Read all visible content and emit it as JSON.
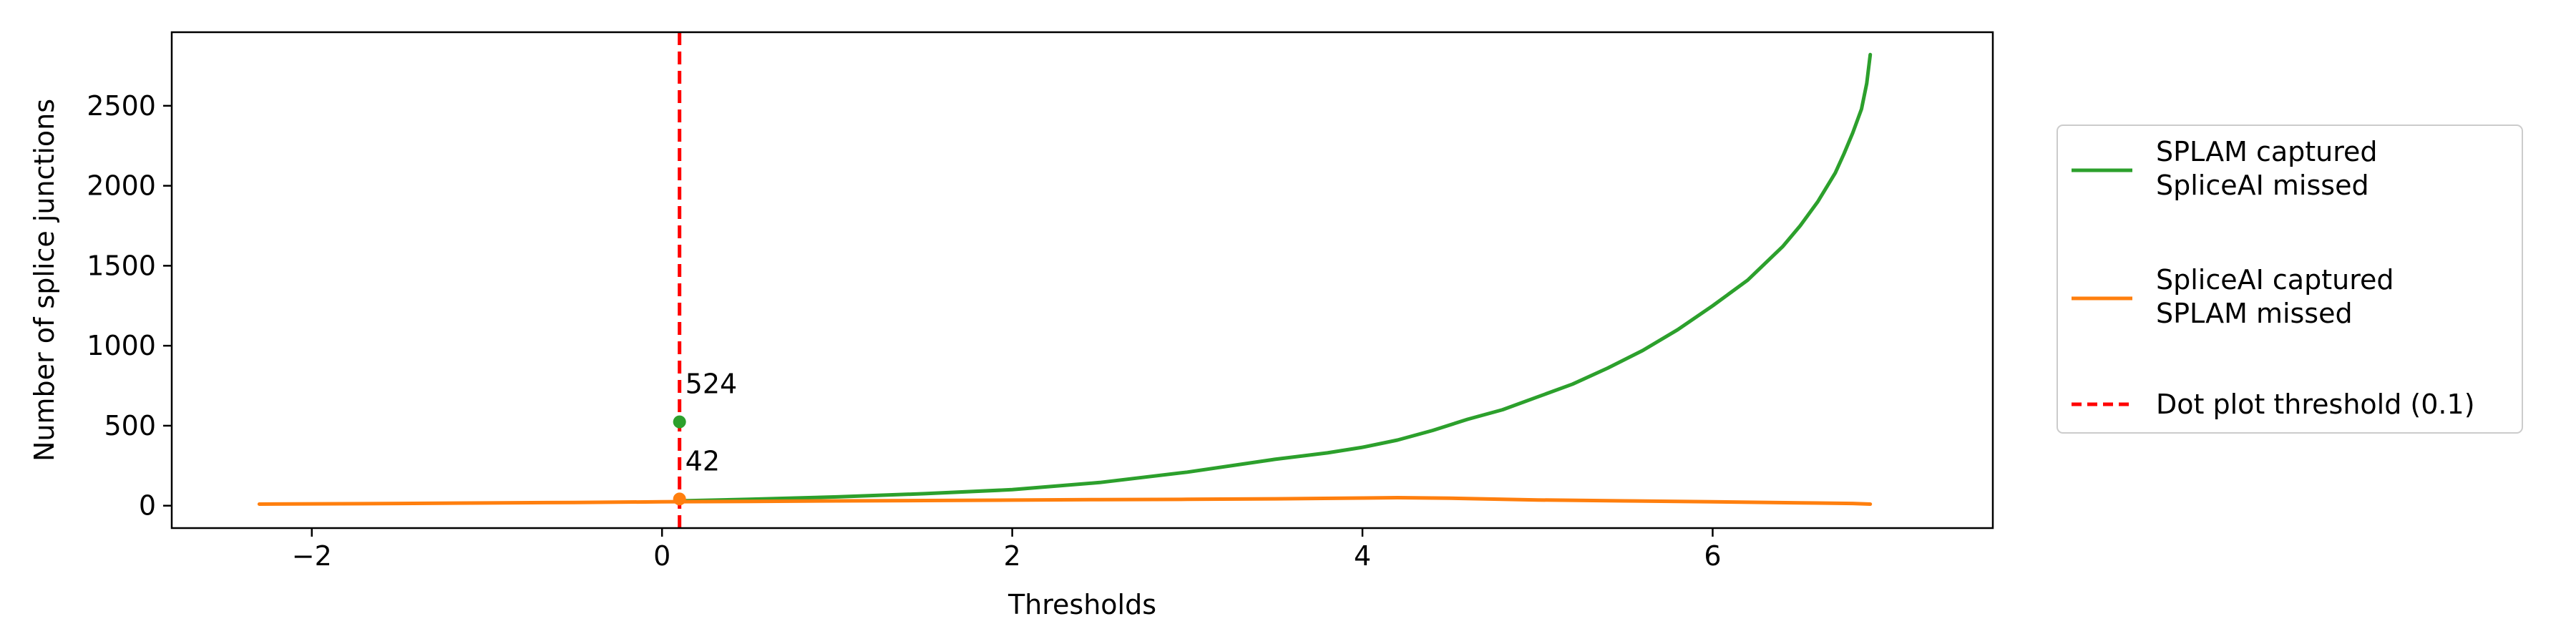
{
  "chart_data": {
    "type": "line",
    "xlabel": "Thresholds",
    "ylabel": "Number of splice junctions",
    "xlim": [
      -2.8,
      7.6
    ],
    "ylim": [
      -140,
      2960
    ],
    "xticks": [
      -2,
      0,
      2,
      4,
      6
    ],
    "yticks": [
      0,
      500,
      1000,
      1500,
      2000,
      2500
    ],
    "xtick_labels": [
      "−2",
      "0",
      "2",
      "4",
      "6"
    ],
    "ytick_labels": [
      "0",
      "500",
      "1000",
      "1500",
      "2000",
      "2500"
    ],
    "grid": false,
    "legend_position": "outside-right",
    "series": [
      {
        "name_lines": [
          "SPLAM captured",
          "SpliceAI missed"
        ],
        "color": "#2ca02c",
        "x": [
          0.1,
          0.5,
          1.0,
          1.5,
          2.0,
          2.5,
          3.0,
          3.5,
          3.8,
          4.0,
          4.2,
          4.4,
          4.6,
          4.8,
          5.0,
          5.2,
          5.4,
          5.6,
          5.8,
          6.0,
          6.2,
          6.4,
          6.5,
          6.6,
          6.7,
          6.75,
          6.8,
          6.85,
          6.88,
          6.9
        ],
        "y": [
          30,
          40,
          55,
          75,
          100,
          145,
          210,
          290,
          330,
          365,
          410,
          470,
          540,
          600,
          680,
          760,
          860,
          970,
          1100,
          1250,
          1410,
          1620,
          1750,
          1900,
          2080,
          2200,
          2330,
          2480,
          2640,
          2820
        ]
      },
      {
        "name_lines": [
          "SpliceAI captured",
          "SPLAM missed"
        ],
        "color": "#ff7f0e",
        "x": [
          -2.3,
          -1.5,
          -1.0,
          -0.5,
          0.0,
          0.1,
          0.5,
          1.0,
          1.5,
          2.0,
          2.5,
          3.0,
          3.5,
          4.0,
          4.2,
          4.5,
          4.8,
          5.0,
          5.5,
          6.0,
          6.5,
          6.8,
          6.9
        ],
        "y": [
          10,
          14,
          17,
          20,
          24,
          25,
          27,
          30,
          32,
          35,
          38,
          40,
          43,
          48,
          50,
          47,
          40,
          36,
          30,
          24,
          18,
          14,
          10
        ]
      }
    ],
    "threshold_line": {
      "x": 0.1,
      "color": "#ff0000",
      "label": "Dot plot threshold (0.1)"
    },
    "annotations": [
      {
        "x": 0.1,
        "y": 524,
        "text": "524",
        "color": "#2ca02c"
      },
      {
        "x": 0.1,
        "y": 42,
        "text": "42",
        "color": "#ff7f0e"
      }
    ]
  }
}
